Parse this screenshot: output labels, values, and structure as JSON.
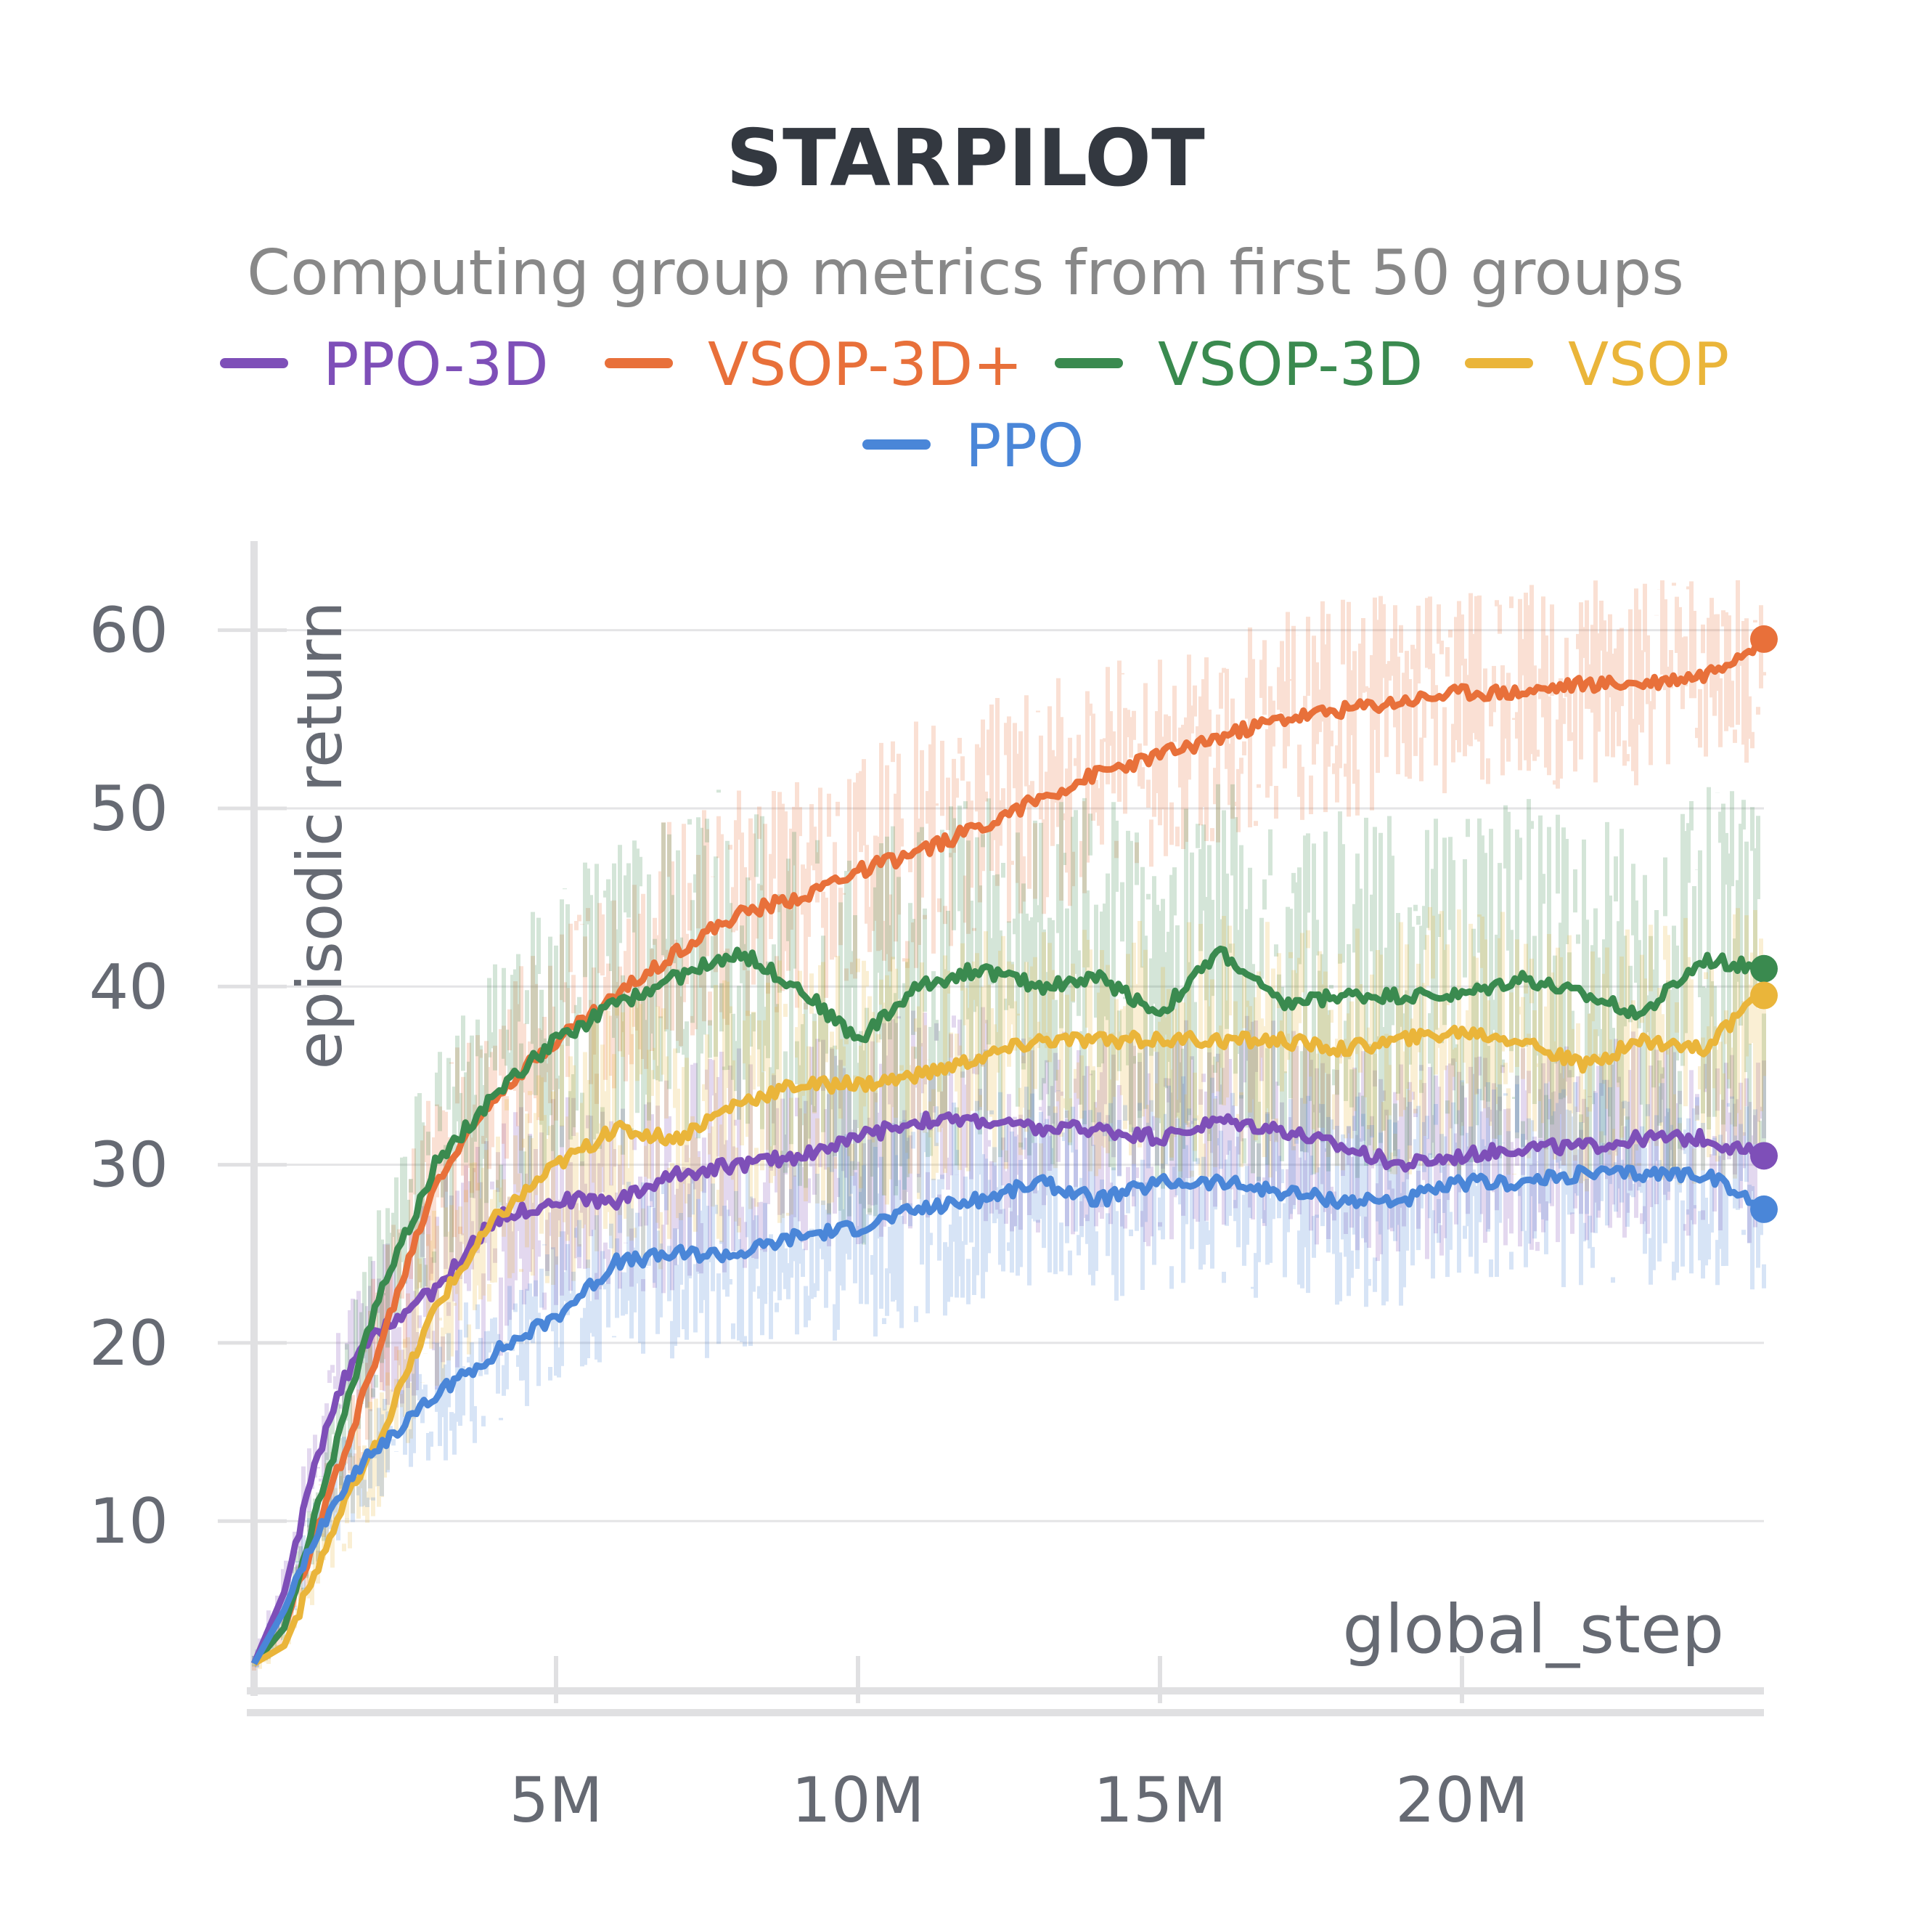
{
  "chart_data": {
    "type": "line",
    "title": "STARPILOT",
    "subtitle": "Computing group metrics from first 50 groups",
    "xlabel": "global_step",
    "ylabel": "episodic return",
    "xlim": [
      0,
      25000000
    ],
    "ylim": [
      1,
      65
    ],
    "x_ticks": [
      5000000,
      10000000,
      15000000,
      20000000
    ],
    "x_tick_labels": [
      "5M",
      "10M",
      "15M",
      "20M"
    ],
    "y_ticks": [
      10,
      20,
      30,
      40,
      50,
      60
    ],
    "y_tick_labels": [
      "10",
      "20",
      "30",
      "40",
      "50",
      "60"
    ],
    "grid": "horizontal",
    "legend_position": "top",
    "series": [
      {
        "name": "PPO-3D",
        "color": "#7e4fb8",
        "x": [
          0,
          500000,
          1000000,
          1500000,
          2000000,
          3000000,
          4000000,
          5000000,
          6000000,
          7000000,
          8000000,
          9000000,
          10000000,
          11000000,
          12000000,
          13000000,
          14000000,
          15000000,
          16000000,
          17000000,
          18000000,
          19000000,
          20000000,
          21000000,
          22000000,
          23000000,
          24000000,
          25000000
        ],
        "y": [
          2,
          6,
          13,
          18,
          20.5,
          23,
          27,
          28,
          28,
          29.5,
          30,
          30.5,
          31.5,
          32.5,
          32.5,
          32,
          32,
          31.5,
          32.5,
          32,
          31,
          30,
          30.5,
          31,
          31,
          31.5,
          31.5,
          30.5
        ],
        "band_low": [
          1.5,
          4,
          10,
          15,
          16,
          17,
          19,
          22,
          22,
          23,
          24,
          25,
          25,
          26,
          26,
          26,
          26,
          25,
          26,
          26,
          25,
          24,
          25,
          25,
          25,
          26,
          26,
          25
        ],
        "band_high": [
          2.5,
          8,
          16,
          22,
          25,
          29,
          33,
          34,
          34,
          36,
          37,
          37,
          38,
          39,
          39,
          38,
          38,
          38,
          39,
          38,
          37,
          36,
          36,
          37,
          37,
          38,
          37,
          36
        ]
      },
      {
        "name": "VSOP-3D+",
        "color": "#e8703a",
        "x": [
          0,
          500000,
          1000000,
          1500000,
          2000000,
          3000000,
          4000000,
          5000000,
          6000000,
          7000000,
          8000000,
          9000000,
          10000000,
          11000000,
          12000000,
          13000000,
          14000000,
          15000000,
          16000000,
          17000000,
          18000000,
          19000000,
          20000000,
          21000000,
          22000000,
          23000000,
          24000000,
          25000000
        ],
        "y": [
          2,
          4,
          9,
          14,
          19,
          29,
          34,
          37,
          39.5,
          42,
          44,
          45,
          46.5,
          47.5,
          49,
          50.5,
          52,
          53,
          54,
          55,
          55.5,
          56,
          56.5,
          56.5,
          57,
          57,
          57.5,
          59.5
        ],
        "band_low": [
          1.5,
          3,
          7,
          11,
          15,
          24,
          29,
          32,
          34,
          36,
          37,
          38,
          40,
          41,
          42,
          44,
          45,
          47,
          48,
          49,
          49,
          50,
          51,
          51,
          51,
          51,
          52,
          52
        ],
        "band_high": [
          2.5,
          5,
          11,
          17,
          24,
          35,
          40,
          44,
          47,
          50,
          51,
          52,
          53,
          55,
          56,
          57,
          58,
          59,
          60,
          61,
          62,
          62,
          62,
          63,
          63,
          63,
          63,
          63
        ]
      },
      {
        "name": "VSOP-3D",
        "color": "#3a8a4f",
        "x": [
          0,
          500000,
          1000000,
          1500000,
          2000000,
          3000000,
          4000000,
          5000000,
          6000000,
          7000000,
          8000000,
          9000000,
          10000000,
          11000000,
          12000000,
          13000000,
          14000000,
          15000000,
          16000000,
          17000000,
          18000000,
          19000000,
          20000000,
          21000000,
          22000000,
          23000000,
          24000000,
          25000000
        ],
        "y": [
          2,
          4,
          10,
          16,
          22,
          30,
          34,
          37,
          39,
          40.5,
          42,
          40,
          37,
          40,
          41,
          40,
          40.5,
          38.5,
          42,
          39,
          39.5,
          39.5,
          39.5,
          40.5,
          39.5,
          38.5,
          41.5,
          41
        ],
        "band_low": [
          1.5,
          3,
          7,
          12,
          17,
          24,
          27,
          29,
          30,
          31,
          32,
          28,
          25,
          29,
          30,
          29,
          30,
          28,
          31,
          28,
          29,
          29,
          29,
          30,
          29,
          28,
          31,
          30
        ],
        "band_high": [
          2.5,
          5,
          13,
          20,
          27,
          37,
          42,
          46,
          48,
          50,
          52,
          51,
          49,
          50,
          51,
          50,
          51,
          49,
          52,
          49,
          50,
          50,
          50,
          51,
          50,
          49,
          52,
          51
        ]
      },
      {
        "name": "VSOP",
        "color": "#eab53a",
        "x": [
          0,
          500000,
          1000000,
          1500000,
          2000000,
          3000000,
          4000000,
          5000000,
          6000000,
          7000000,
          8000000,
          9000000,
          10000000,
          11000000,
          12000000,
          13000000,
          14000000,
          15000000,
          16000000,
          17000000,
          18000000,
          19000000,
          20000000,
          21000000,
          22000000,
          23000000,
          24000000,
          25000000
        ],
        "y": [
          2,
          3,
          7,
          11,
          14,
          22,
          27,
          30,
          32,
          31.5,
          33.5,
          34.5,
          34.5,
          35,
          36,
          37,
          37,
          37,
          37,
          37,
          36.5,
          37,
          37.5,
          37,
          35.5,
          37,
          36.5,
          39.5
        ],
        "band_low": [
          1.5,
          2.5,
          5,
          8,
          10,
          17,
          21,
          23,
          24,
          24,
          26,
          27,
          27,
          28,
          29,
          29,
          29,
          29,
          29,
          29,
          28,
          29,
          29,
          29,
          28,
          29,
          28,
          30
        ],
        "band_high": [
          2.5,
          4,
          9,
          14,
          18,
          28,
          33,
          37,
          40,
          39,
          41,
          42,
          42,
          42,
          43,
          44,
          44,
          44,
          44,
          44,
          43,
          44,
          45,
          44,
          43,
          44,
          44,
          46
        ]
      },
      {
        "name": "PPO",
        "color": "#4a86d8",
        "x": [
          0,
          500000,
          1000000,
          1500000,
          2000000,
          3000000,
          4000000,
          5000000,
          6000000,
          7000000,
          8000000,
          9000000,
          10000000,
          11000000,
          12000000,
          13000000,
          14000000,
          15000000,
          16000000,
          17000000,
          18000000,
          19000000,
          20000000,
          21000000,
          22000000,
          23000000,
          24000000,
          25000000
        ],
        "y": [
          2,
          5,
          9,
          12,
          14,
          17,
          19.5,
          21.5,
          24.5,
          25,
          25,
          26,
          26.5,
          27.5,
          28,
          29,
          28,
          29,
          29,
          28.5,
          28,
          28,
          29,
          29,
          29.5,
          29.5,
          29.5,
          27.5
        ],
        "band_low": [
          1.5,
          3.5,
          7,
          9,
          11,
          13,
          15,
          17,
          19,
          19,
          19,
          20,
          20,
          21,
          22,
          23,
          22,
          23,
          23,
          22,
          22,
          22,
          23,
          23,
          23,
          23,
          23,
          22
        ],
        "band_high": [
          2.5,
          6.5,
          11,
          15,
          17,
          21,
          24,
          26,
          29,
          30,
          30,
          31,
          32,
          33,
          34,
          35,
          34,
          35,
          35,
          34,
          34,
          34,
          35,
          35,
          35,
          35,
          35,
          33
        ]
      }
    ]
  }
}
